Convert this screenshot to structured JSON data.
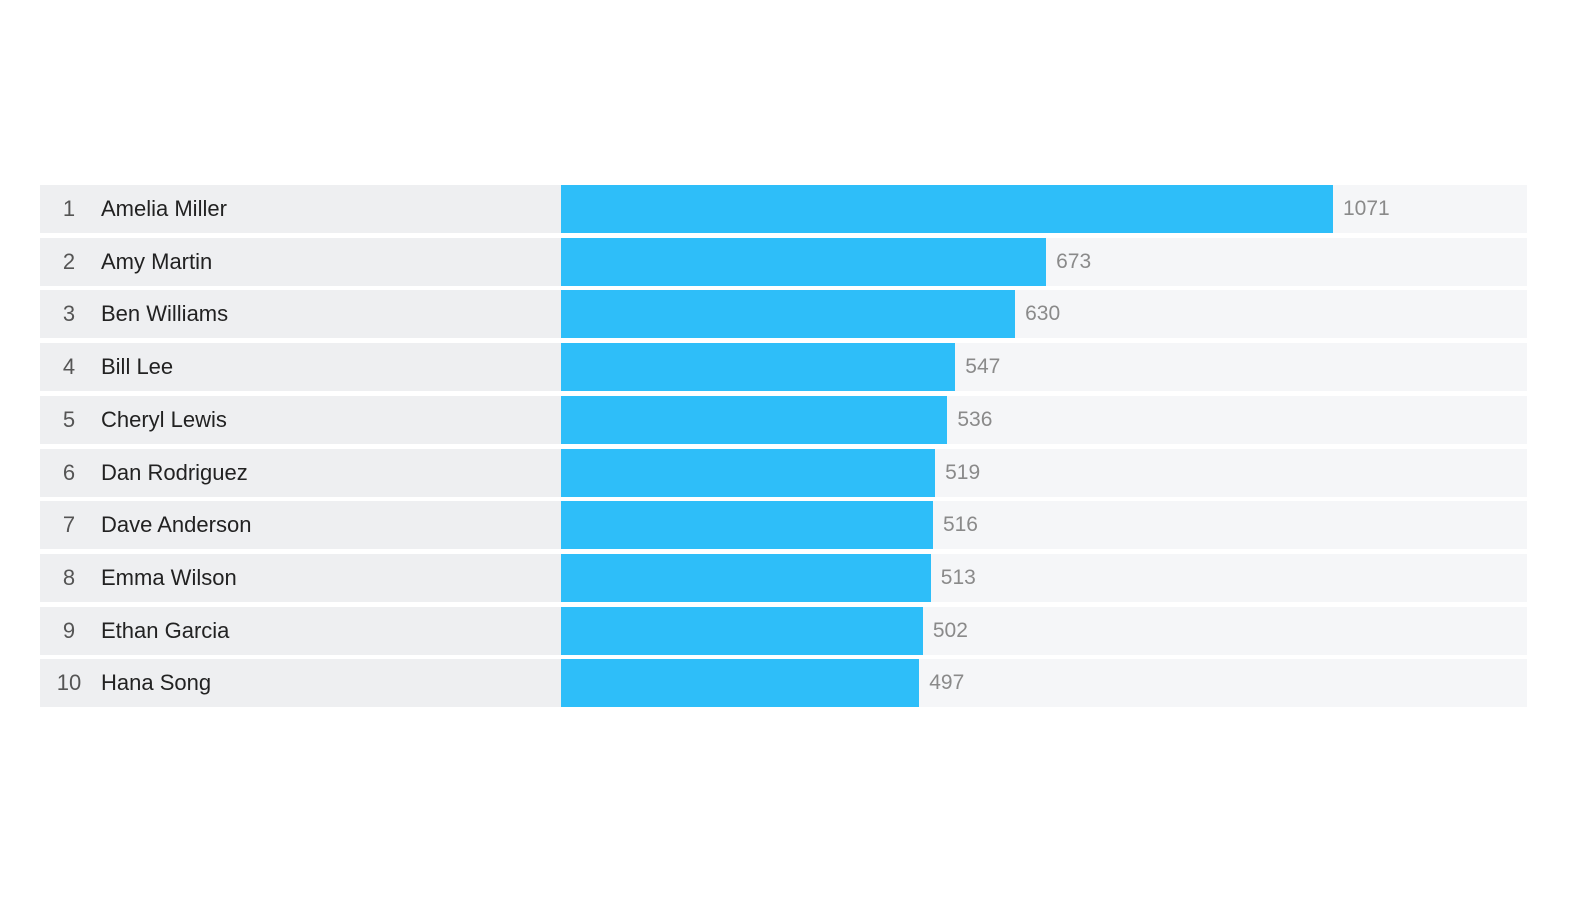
{
  "chart_data": {
    "type": "bar",
    "orientation": "horizontal",
    "title": "",
    "ranks": [
      "1",
      "2",
      "3",
      "4",
      "5",
      "6",
      "7",
      "8",
      "9",
      "10"
    ],
    "categories": [
      "Amelia Miller",
      "Amy Martin",
      "Ben Williams",
      "Bill Lee",
      "Cheryl Lewis",
      "Dan Rodriguez",
      "Dave Anderson",
      "Emma Wilson",
      "Ethan Garcia",
      "Hana Song"
    ],
    "values": [
      1071,
      673,
      630,
      547,
      536,
      519,
      516,
      513,
      502,
      497
    ],
    "xlim": [
      0,
      1340
    ],
    "bar_color": "#2ebef9"
  }
}
